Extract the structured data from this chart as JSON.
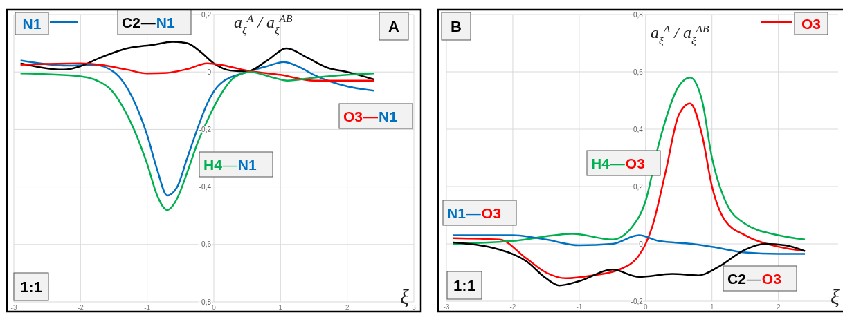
{
  "chart_data": [
    {
      "type": "line",
      "xlabel": "ξ",
      "ylabel": "a$_{ξ}$$^{A}$ / a$_{ξ}$$^{AB}$",
      "xlim": [
        -3,
        3
      ],
      "ylim": [
        -0.8,
        0.2
      ],
      "grid": true,
      "xticks": [
        -3,
        -2,
        -1,
        0,
        1,
        2,
        3
      ],
      "yticks": [
        {
          "value": -0.8,
          "label": "-0,8"
        },
        {
          "value": -0.6,
          "label": "-0,6"
        },
        {
          "value": -0.4,
          "label": "-0,4"
        },
        {
          "value": -0.2,
          "label": "-0,2"
        },
        {
          "value": 0,
          "label": "0"
        },
        {
          "value": 0.2,
          "label": "0,2"
        }
      ],
      "annotations": [
        "A",
        "1:1"
      ],
      "series": [
        {
          "name": "N1",
          "color": "#0070c0",
          "x": [
            -2.9,
            -2.2,
            -1.8,
            -1.5,
            -1.2,
            -1,
            -0.85,
            -0.7,
            -0.55,
            -0.4,
            -0.25,
            -0.1,
            0.1,
            0.5,
            0.8,
            1.05,
            1.3,
            1.5,
            2,
            2.4
          ],
          "values": [
            0.04,
            0.022,
            0.025,
            0,
            -0.1,
            -0.22,
            -0.34,
            -0.43,
            -0.4,
            -0.3,
            -0.2,
            -0.11,
            -0.04,
            0,
            0.02,
            0.035,
            0.015,
            -0.01,
            -0.05,
            -0.065
          ]
        },
        {
          "name": "C2—N1",
          "color": "#000000",
          "x": [
            -2.9,
            -2.25,
            -2,
            -1.7,
            -1.3,
            -0.9,
            -0.62,
            -0.4,
            -0.2,
            0,
            0.25,
            0.5,
            0.8,
            1.09,
            1.4,
            1.7,
            2,
            2.4
          ],
          "values": [
            0.03,
            0.008,
            0.02,
            0.05,
            0.082,
            0.095,
            0.105,
            0.1,
            0.07,
            0.03,
            0.005,
            0.002,
            0.04,
            0.082,
            0.05,
            0.015,
            0,
            -0.026
          ]
        },
        {
          "name": "O3—N1",
          "color": "#ff0000",
          "x": [
            -2.9,
            -2.5,
            -2,
            -1.7,
            -1.3,
            -1,
            -0.7,
            -0.4,
            -0.1,
            0.1,
            0.3,
            0.5,
            1,
            1.5,
            2,
            2.4
          ],
          "values": [
            0.025,
            0.028,
            0.03,
            0.025,
            0.008,
            -0.005,
            -0.003,
            0.01,
            0.03,
            0.025,
            0.015,
            0.005,
            -0.01,
            -0.03,
            -0.03,
            -0.03
          ]
        },
        {
          "name": "H4—N1",
          "color": "#00b050",
          "x": [
            -2.9,
            -2,
            -1.6,
            -1.3,
            -1,
            -0.85,
            -0.7,
            -0.55,
            -0.4,
            -0.25,
            -0.1,
            0.1,
            0.3,
            0.55,
            0.9,
            1.1,
            1.5,
            2,
            2.4
          ],
          "values": [
            -0.005,
            -0.015,
            -0.05,
            -0.15,
            -0.32,
            -0.43,
            -0.48,
            -0.44,
            -0.35,
            -0.25,
            -0.17,
            -0.08,
            -0.02,
            0,
            -0.02,
            -0.03,
            -0.02,
            -0.01,
            -0.005
          ]
        }
      ]
    },
    {
      "type": "line",
      "xlabel": "ξ",
      "ylabel": "a$_{ξ}$$^{A}$ / a$_{ξ}$$^{AB}$",
      "xlim": [
        -3,
        2.9
      ],
      "ylim": [
        -0.2,
        0.8
      ],
      "grid": true,
      "xticks": [
        -3,
        -2,
        -1,
        0,
        1,
        2
      ],
      "yticks": [
        {
          "value": -0.2,
          "label": "-0,2"
        },
        {
          "value": 0,
          "label": "0"
        },
        {
          "value": 0.2,
          "label": "0,2"
        },
        {
          "value": 0.4,
          "label": "0,4"
        },
        {
          "value": 0.6,
          "label": "0,6"
        },
        {
          "value": 0.8,
          "label": "0,8"
        }
      ],
      "annotations": [
        "B",
        "1:1"
      ],
      "series": [
        {
          "name": "O3",
          "color": "#ff0000",
          "x": [
            -2.9,
            -2.2,
            -1.8,
            -1.5,
            -1.2,
            -0.8,
            -0.4,
            -0.1,
            0,
            0.1,
            0.3,
            0.5,
            0.67,
            0.85,
            1,
            1.2,
            1.5,
            2,
            2.4
          ],
          "values": [
            0.02,
            0.015,
            -0.05,
            -0.1,
            -0.12,
            -0.11,
            -0.09,
            -0.04,
            0,
            0.06,
            0.25,
            0.45,
            0.49,
            0.38,
            0.2,
            0.08,
            0.03,
            -0.01,
            -0.025
          ]
        },
        {
          "name": "H4—O3",
          "color": "#00b050",
          "x": [
            -2.9,
            -2,
            -1.1,
            -0.5,
            -0.2,
            0,
            0.2,
            0.5,
            0.67,
            0.85,
            1,
            1.2,
            1.5,
            2,
            2.4
          ],
          "values": [
            0,
            0.01,
            0.035,
            0.015,
            0.06,
            0.15,
            0.35,
            0.55,
            0.58,
            0.5,
            0.3,
            0.15,
            0.07,
            0.03,
            0.015
          ]
        },
        {
          "name": "N1—O3",
          "color": "#0070c0",
          "x": [
            -2.9,
            -2,
            -1.5,
            -1,
            -0.5,
            -0.1,
            0.2,
            0.7,
            1,
            1.5,
            2,
            2.4
          ],
          "values": [
            0.03,
            0.03,
            0.015,
            -0.005,
            0,
            0.03,
            0.01,
            0,
            -0.01,
            -0.03,
            -0.035,
            -0.035
          ]
        },
        {
          "name": "C2—O3",
          "color": "#000000",
          "x": [
            -2.9,
            -2.2,
            -1.8,
            -1.5,
            -1.3,
            -1,
            -0.5,
            -0.1,
            0.4,
            0.8,
            1.1,
            1.5,
            1.8,
            2.1,
            2.4
          ],
          "values": [
            0.005,
            -0.02,
            -0.06,
            -0.12,
            -0.145,
            -0.13,
            -0.09,
            -0.115,
            -0.105,
            -0.11,
            -0.08,
            -0.02,
            0,
            -0.005,
            -0.025
          ]
        }
      ]
    }
  ]
}
